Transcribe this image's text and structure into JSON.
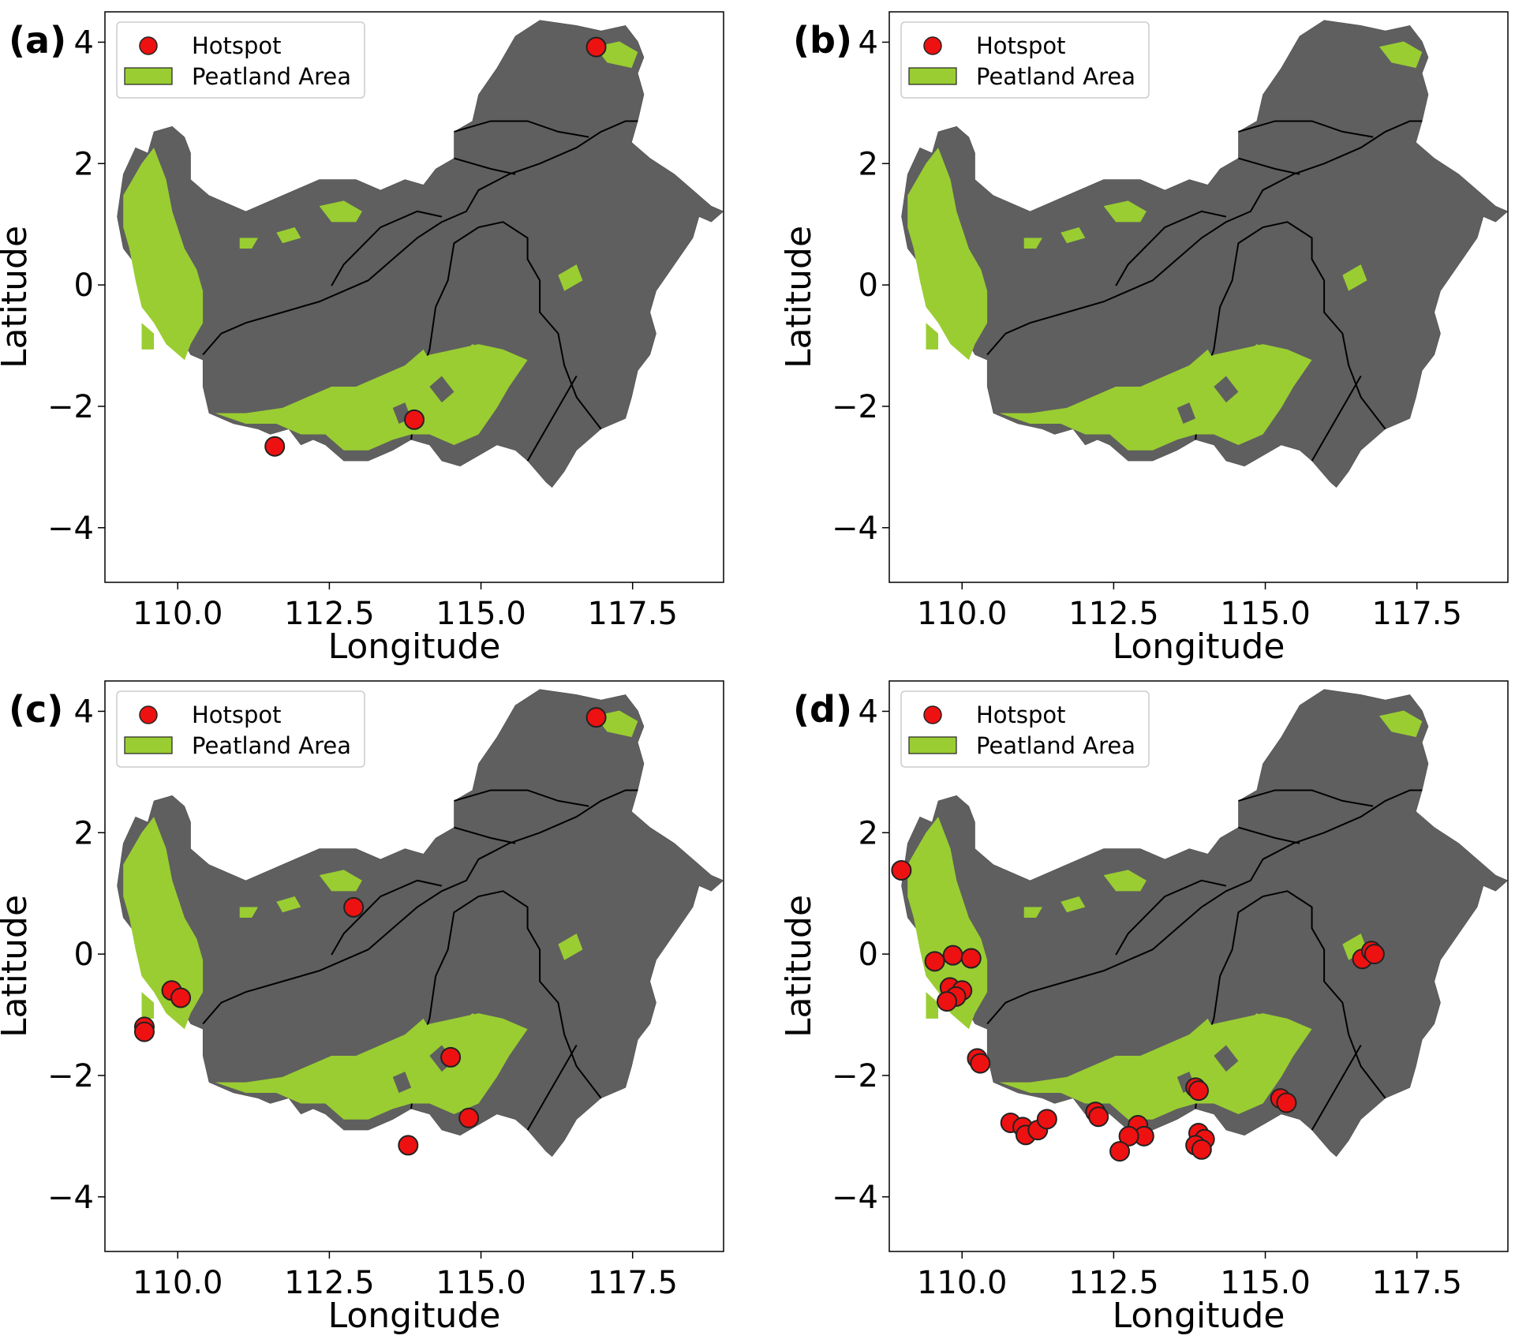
{
  "figure": {
    "colors": {
      "land": "#5f5f5f",
      "border": "#000000",
      "peat": "#9acd32",
      "hotspot": "#ee1111",
      "hotspot_edge": "#222222"
    },
    "panels": [
      {
        "id": "a",
        "label": "(a)",
        "xlabel": "Longitude",
        "ylabel": "Latitude",
        "legend": {
          "hotspot_label": "Hotspot",
          "peatland_label": "Peatland Area",
          "placement": "top-left"
        }
      },
      {
        "id": "b",
        "label": "(b)",
        "xlabel": "Longitude",
        "ylabel": "Latitude",
        "legend": {
          "hotspot_label": "Hotspot",
          "peatland_label": "Peatland Area",
          "placement": "top-left"
        }
      },
      {
        "id": "c",
        "label": "(c)",
        "xlabel": "Longitude",
        "ylabel": "Latitude",
        "legend": {
          "hotspot_label": "Hotspot",
          "peatland_label": "Peatland Area",
          "placement": "top-left"
        }
      },
      {
        "id": "d",
        "label": "(d)",
        "xlabel": "Longitude",
        "ylabel": "Latitude",
        "legend": {
          "hotspot_label": "Hotspot",
          "peatland_label": "Peatland Area",
          "placement": "top-left"
        }
      }
    ],
    "x_ticks": [
      "110.0",
      "112.5",
      "115.0",
      "117.5"
    ],
    "y_ticks": [
      "4",
      "2",
      "0",
      "−2",
      "−4"
    ]
  },
  "chart_data": [
    {
      "type": "scatter",
      "panel": "(a)",
      "xlabel": "Longitude",
      "ylabel": "Latitude",
      "xlim": [
        108.8,
        119.0
      ],
      "ylim": [
        -4.9,
        4.5
      ],
      "legend": [
        "Hotspot",
        "Peatland Area"
      ],
      "series": [
        {
          "name": "Hotspot",
          "points": [
            [
              116.9,
              3.92
            ],
            [
              113.9,
              -2.22
            ],
            [
              111.6,
              -2.66
            ]
          ]
        }
      ]
    },
    {
      "type": "scatter",
      "panel": "(b)",
      "xlabel": "Longitude",
      "ylabel": "Latitude",
      "xlim": [
        108.8,
        119.0
      ],
      "ylim": [
        -4.9,
        4.5
      ],
      "legend": [
        "Hotspot",
        "Peatland Area"
      ],
      "series": [
        {
          "name": "Hotspot",
          "points": []
        }
      ]
    },
    {
      "type": "scatter",
      "panel": "(c)",
      "xlabel": "Longitude",
      "ylabel": "Latitude",
      "xlim": [
        108.8,
        119.0
      ],
      "ylim": [
        -4.9,
        4.5
      ],
      "legend": [
        "Hotspot",
        "Peatland Area"
      ],
      "series": [
        {
          "name": "Hotspot",
          "points": [
            [
              116.9,
              3.9
            ],
            [
              112.9,
              0.77
            ],
            [
              109.9,
              -0.6
            ],
            [
              110.05,
              -0.72
            ],
            [
              109.45,
              -1.2
            ],
            [
              109.45,
              -1.28
            ],
            [
              114.5,
              -1.7
            ],
            [
              114.8,
              -2.7
            ],
            [
              113.8,
              -3.15
            ]
          ]
        }
      ]
    },
    {
      "type": "scatter",
      "panel": "(d)",
      "xlabel": "Longitude",
      "ylabel": "Latitude",
      "xlim": [
        108.8,
        119.0
      ],
      "ylim": [
        -4.9,
        4.5
      ],
      "legend": [
        "Hotspot",
        "Peatland Area"
      ],
      "series": [
        {
          "name": "Hotspot",
          "points": [
            [
              109.0,
              1.38
            ],
            [
              109.55,
              -0.12
            ],
            [
              109.85,
              -0.02
            ],
            [
              110.15,
              -0.07
            ],
            [
              109.8,
              -0.55
            ],
            [
              110.0,
              -0.6
            ],
            [
              109.9,
              -0.7
            ],
            [
              109.75,
              -0.78
            ],
            [
              110.25,
              -1.72
            ],
            [
              110.3,
              -1.8
            ],
            [
              110.8,
              -2.78
            ],
            [
              111.0,
              -2.85
            ],
            [
              111.05,
              -2.98
            ],
            [
              111.25,
              -2.9
            ],
            [
              111.4,
              -2.72
            ],
            [
              112.2,
              -2.6
            ],
            [
              112.25,
              -2.68
            ],
            [
              112.9,
              -2.82
            ],
            [
              113.0,
              -3.0
            ],
            [
              112.75,
              -3.0
            ],
            [
              112.6,
              -3.25
            ],
            [
              113.85,
              -2.2
            ],
            [
              113.9,
              -2.25
            ],
            [
              113.9,
              -2.95
            ],
            [
              114.0,
              -3.05
            ],
            [
              113.85,
              -3.15
            ],
            [
              113.95,
              -3.22
            ],
            [
              115.25,
              -2.38
            ],
            [
              115.35,
              -2.45
            ],
            [
              116.6,
              -0.08
            ],
            [
              116.75,
              0.05
            ],
            [
              116.8,
              0.0
            ]
          ]
        }
      ]
    }
  ]
}
